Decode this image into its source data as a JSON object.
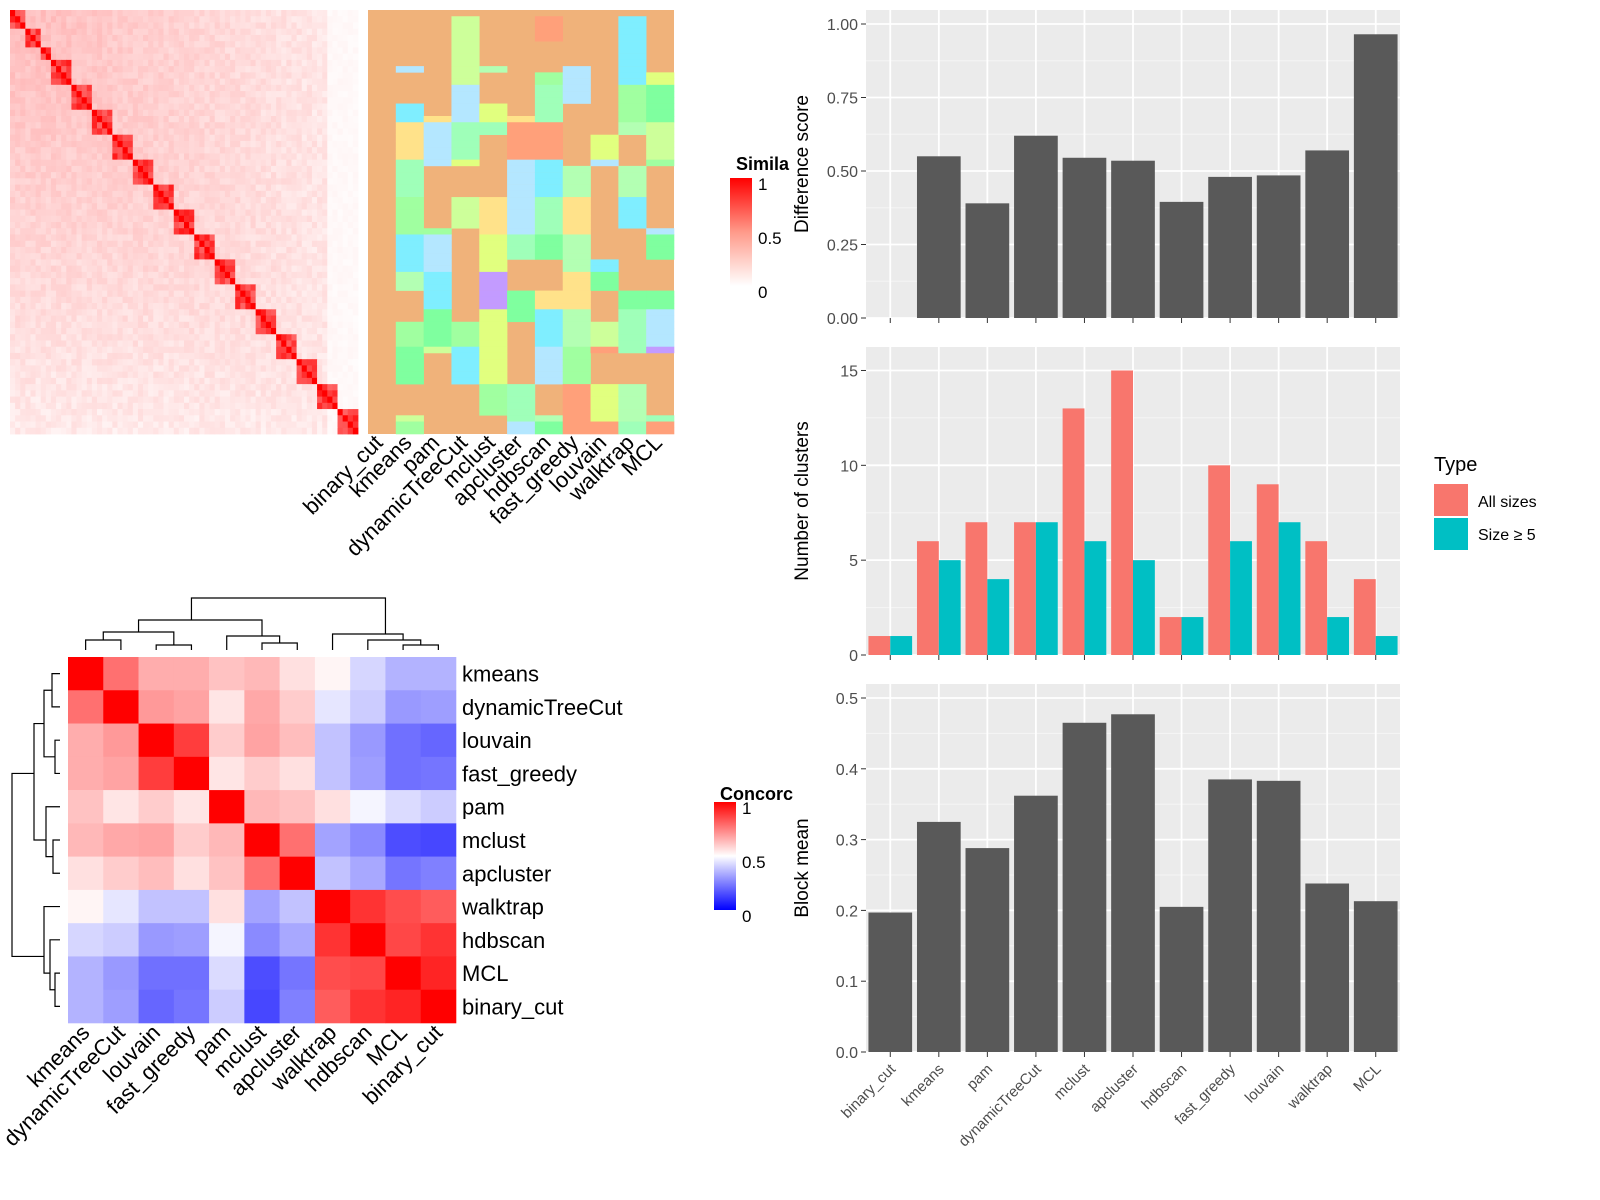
{
  "methods": [
    "binary_cut",
    "kmeans",
    "pam",
    "dynamicTreeCut",
    "mclust",
    "apcluster",
    "hdbscan",
    "fast_greedy",
    "louvain",
    "walktrap",
    "MCL"
  ],
  "similarity_panel": {
    "legend_title": "Simila",
    "legend_ticks": [
      "1",
      "0.5",
      "0"
    ],
    "column_labels": [
      "binary_cut",
      "kmeans",
      "pam",
      "dynamicTreeCut",
      "mclust",
      "apcluster",
      "hdbscan",
      "fast_greedy",
      "louvain",
      "walktrap",
      "MCL"
    ]
  },
  "concordance_panel": {
    "legend_title": "Concorc",
    "legend_ticks": [
      "1",
      "0.5",
      "0"
    ],
    "order": [
      "kmeans",
      "dynamicTreeCut",
      "louvain",
      "fast_greedy",
      "pam",
      "mclust",
      "apcluster",
      "walktrap",
      "hdbscan",
      "MCL",
      "binary_cut"
    ]
  },
  "colors": {
    "bar": "#595959",
    "all_sizes": "#F8766D",
    "size5": "#00BFC4",
    "panel_bg": "#EBEBEB",
    "heat_high": "#FF0000",
    "heat_low_conc": "#0000FF",
    "cluster_bg": "#F0B27A"
  },
  "chart_data": [
    {
      "type": "bar",
      "categories": [
        "binary_cut",
        "kmeans",
        "pam",
        "dynamicTreeCut",
        "mclust",
        "apcluster",
        "hdbscan",
        "fast_greedy",
        "louvain",
        "walktrap",
        "MCL"
      ],
      "values": [
        0.0,
        0.55,
        0.39,
        0.62,
        0.545,
        0.535,
        0.395,
        0.48,
        0.485,
        0.57,
        0.965
      ],
      "title": "",
      "xlabel": "",
      "ylabel": "Difference score",
      "ylim": [
        0,
        1.0
      ],
      "yticks": [
        "0.00",
        "0.25",
        "0.50",
        "0.75",
        "1.00"
      ],
      "grid": true
    },
    {
      "type": "bar",
      "categories": [
        "binary_cut",
        "kmeans",
        "pam",
        "dynamicTreeCut",
        "mclust",
        "apcluster",
        "hdbscan",
        "fast_greedy",
        "louvain",
        "walktrap",
        "MCL"
      ],
      "series": [
        {
          "name": "All sizes",
          "values": [
            1,
            6,
            7,
            7,
            13,
            15,
            2,
            10,
            9,
            6,
            4
          ]
        },
        {
          "name": "Size ≥ 5",
          "values": [
            1,
            5,
            4,
            7,
            6,
            5,
            2,
            6,
            7,
            2,
            1
          ]
        }
      ],
      "ylabel": "Number of clusters",
      "ylim": [
        0,
        15.5
      ],
      "yticks": [
        "0",
        "5",
        "10",
        "15"
      ],
      "legend_title": "Type",
      "legend_position": "right",
      "grid": true
    },
    {
      "type": "bar",
      "categories": [
        "binary_cut",
        "kmeans",
        "pam",
        "dynamicTreeCut",
        "mclust",
        "apcluster",
        "hdbscan",
        "fast_greedy",
        "louvain",
        "walktrap",
        "MCL"
      ],
      "values": [
        0.197,
        0.325,
        0.288,
        0.362,
        0.465,
        0.477,
        0.205,
        0.385,
        0.383,
        0.238,
        0.213
      ],
      "ylabel": "Block mean",
      "ylim": [
        0,
        0.5
      ],
      "yticks": [
        "0.0",
        "0.1",
        "0.2",
        "0.3",
        "0.4",
        "0.5"
      ],
      "grid": true
    },
    {
      "type": "heatmap",
      "rows": [
        "kmeans",
        "dynamicTreeCut",
        "louvain",
        "fast_greedy",
        "pam",
        "mclust",
        "apcluster",
        "walktrap",
        "hdbscan",
        "MCL",
        "binary_cut"
      ],
      "columns": [
        "kmeans",
        "dynamicTreeCut",
        "louvain",
        "fast_greedy",
        "pam",
        "mclust",
        "apcluster",
        "walktrap",
        "hdbscan",
        "MCL",
        "binary_cut"
      ],
      "values": [
        [
          1.0,
          0.78,
          0.66,
          0.66,
          0.62,
          0.64,
          0.56,
          0.52,
          0.42,
          0.35,
          0.35
        ],
        [
          0.78,
          1.0,
          0.7,
          0.68,
          0.55,
          0.67,
          0.6,
          0.45,
          0.4,
          0.3,
          0.31
        ],
        [
          0.66,
          0.7,
          1.0,
          0.88,
          0.6,
          0.68,
          0.63,
          0.38,
          0.3,
          0.22,
          0.2
        ],
        [
          0.66,
          0.68,
          0.88,
          1.0,
          0.55,
          0.6,
          0.56,
          0.38,
          0.31,
          0.22,
          0.23
        ],
        [
          0.62,
          0.55,
          0.6,
          0.55,
          1.0,
          0.64,
          0.62,
          0.56,
          0.48,
          0.43,
          0.4
        ],
        [
          0.64,
          0.67,
          0.68,
          0.6,
          0.64,
          1.0,
          0.78,
          0.32,
          0.27,
          0.15,
          0.14
        ],
        [
          0.56,
          0.6,
          0.63,
          0.56,
          0.62,
          0.78,
          1.0,
          0.38,
          0.33,
          0.23,
          0.25
        ],
        [
          0.52,
          0.45,
          0.38,
          0.38,
          0.56,
          0.32,
          0.38,
          1.0,
          0.9,
          0.85,
          0.82
        ],
        [
          0.42,
          0.4,
          0.3,
          0.31,
          0.48,
          0.27,
          0.33,
          0.9,
          1.0,
          0.86,
          0.9
        ],
        [
          0.35,
          0.3,
          0.22,
          0.22,
          0.43,
          0.15,
          0.23,
          0.85,
          0.86,
          1.0,
          0.93
        ],
        [
          0.35,
          0.31,
          0.2,
          0.23,
          0.4,
          0.14,
          0.25,
          0.82,
          0.9,
          0.93,
          1.0
        ]
      ],
      "legend_title": "Concorc",
      "scale": [
        0,
        1
      ]
    }
  ]
}
